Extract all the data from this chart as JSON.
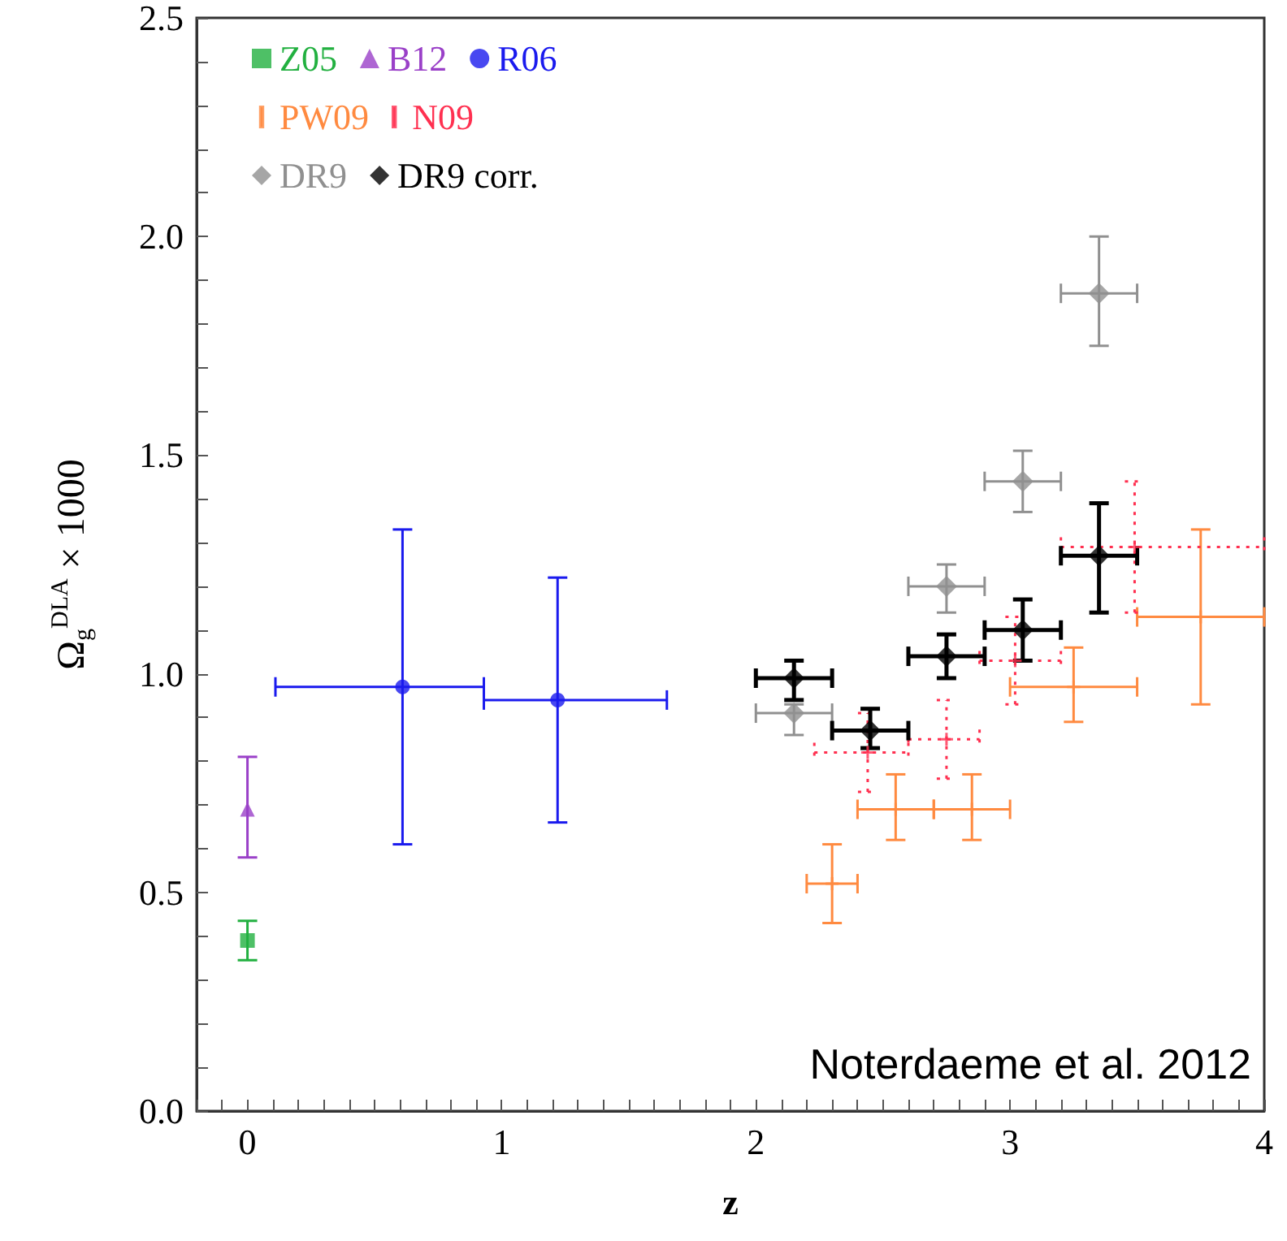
{
  "chart_data": {
    "type": "scatter",
    "xlabel": "z",
    "ylabel": "Ω$_{g}$$^{DLA}$ × 1000",
    "annotations": [
      "Noterdaeme et al. 2012"
    ],
    "xlim": [
      -0.2,
      4
    ],
    "ylim": [
      0,
      2.5
    ],
    "xticks": [
      {
        "value": -0.2,
        "label": null
      },
      {
        "value": -0.1,
        "label": null
      },
      0,
      {
        "value": 0.1,
        "label": null
      },
      {
        "value": 0.2,
        "label": null
      },
      {
        "value": 0.3,
        "label": null
      },
      {
        "value": 0.4,
        "label": null
      },
      {
        "value": 0.5,
        "label": null
      },
      {
        "value": 0.6,
        "label": null
      },
      {
        "value": 0.7,
        "label": null
      },
      {
        "value": 0.8,
        "label": null
      },
      {
        "value": 0.9,
        "label": null
      },
      1,
      {
        "value": 1.1,
        "label": null
      },
      {
        "value": 1.2,
        "label": null
      },
      {
        "value": 1.3,
        "label": null
      },
      {
        "value": 1.4,
        "label": null
      },
      {
        "value": 1.5,
        "label": null
      },
      {
        "value": 1.6,
        "label": null
      },
      {
        "value": 1.7,
        "label": null
      },
      {
        "value": 1.8,
        "label": null
      },
      {
        "value": 1.9,
        "label": null
      },
      2,
      {
        "value": 2.1,
        "label": null
      },
      {
        "value": 2.2,
        "label": null
      },
      {
        "value": 2.3,
        "label": null
      },
      {
        "value": 2.4,
        "label": null
      },
      {
        "value": 2.5,
        "label": null
      },
      {
        "value": 2.6,
        "label": null
      },
      {
        "value": 2.7,
        "label": null
      },
      {
        "value": 2.8,
        "label": null
      },
      {
        "value": 2.9,
        "label": null
      },
      3,
      {
        "value": 3.1,
        "label": null
      },
      {
        "value": 3.2,
        "label": null
      },
      {
        "value": 3.3,
        "label": null
      },
      {
        "value": 3.4,
        "label": null
      },
      {
        "value": 3.5,
        "label": null
      },
      {
        "value": 3.6,
        "label": null
      },
      {
        "value": 3.7,
        "label": null
      },
      {
        "value": 3.8,
        "label": null
      },
      {
        "value": 3.9,
        "label": null
      },
      4
    ],
    "yticks": [
      {
        "value": 0,
        "label": "0.0"
      },
      {
        "value": 0.1,
        "label": null
      },
      {
        "value": 0.2,
        "label": null
      },
      {
        "value": 0.3,
        "label": null
      },
      {
        "value": 0.4,
        "label": null
      },
      0.5,
      {
        "value": 0.6,
        "label": null
      },
      {
        "value": 0.7,
        "label": null
      },
      {
        "value": 0.8,
        "label": null
      },
      {
        "value": 0.9,
        "label": null
      },
      {
        "value": 1,
        "label": "1.0"
      },
      {
        "value": 1.1,
        "label": null
      },
      {
        "value": 1.2,
        "label": null
      },
      {
        "value": 1.3,
        "label": null
      },
      {
        "value": 1.4,
        "label": null
      },
      1.5,
      {
        "value": 1.6,
        "label": null
      },
      {
        "value": 1.7,
        "label": null
      },
      {
        "value": 1.8,
        "label": null
      },
      {
        "value": 1.9,
        "label": null
      },
      {
        "value": 2,
        "label": "2.0"
      },
      {
        "value": 2.1,
        "label": null
      },
      {
        "value": 2.2,
        "label": null
      },
      {
        "value": 2.3,
        "label": null
      },
      {
        "value": 2.4,
        "label": null
      },
      2.5
    ],
    "grid": false,
    "legend": "top left",
    "series": [
      {
        "name": "Z05",
        "color": "#22b040",
        "marker": "square",
        "x": [
          0
        ],
        "values": [
          0.39
        ],
        "errors": [
          [
            0.345,
            0.435
          ]
        ]
      },
      {
        "name": "B12",
        "color": "#9a40c8",
        "marker": "triangle",
        "x": [
          0
        ],
        "values": [
          0.69
        ],
        "errors": [
          [
            0.58,
            0.81
          ]
        ]
      },
      {
        "name": "R06",
        "color": "#1a1aee",
        "marker": "circle",
        "x": [
          0.61,
          1.22
        ],
        "values": [
          0.97,
          0.94
        ],
        "errors": [
          [
            0.61,
            1.33
          ],
          [
            0.66,
            1.22
          ]
        ],
        "xerrors": [
          [
            0.11,
            0.93
          ],
          [
            0.93,
            1.65
          ]
        ]
      },
      {
        "name": "PW09",
        "color": "#ff8a40",
        "marker": "cross",
        "x": [
          2.3,
          2.55,
          2.85,
          3.25,
          3.75
        ],
        "values": [
          0.52,
          0.69,
          0.69,
          0.97,
          1.13
        ],
        "errors": [
          [
            0.43,
            0.61
          ],
          [
            0.62,
            0.77
          ],
          [
            0.62,
            0.77
          ],
          [
            0.89,
            1.06
          ],
          [
            0.93,
            1.33
          ]
        ],
        "xerrors": [
          [
            2.2,
            2.4
          ],
          [
            2.4,
            2.7
          ],
          [
            2.7,
            3.0
          ],
          [
            3.0,
            3.5
          ],
          [
            3.5,
            4.0
          ]
        ]
      },
      {
        "name": "N09",
        "color": "#ff3050",
        "marker": "cross",
        "line_style": "dotted",
        "x": [
          2.44,
          2.75,
          3.02,
          3.49
        ],
        "values": [
          0.82,
          0.85,
          1.03,
          1.29
        ],
        "errors": [
          [
            0.73,
            0.91
          ],
          [
            0.76,
            0.94
          ],
          [
            0.93,
            1.13
          ],
          [
            1.14,
            1.44
          ]
        ],
        "xerrors": [
          [
            2.23,
            2.6
          ],
          [
            2.6,
            2.88
          ],
          [
            2.88,
            3.2
          ],
          [
            3.2,
            4.0
          ]
        ]
      },
      {
        "name": "DR9",
        "color": "#909090",
        "marker": "diamond",
        "x": [
          2.15,
          2.45,
          2.75,
          3.05,
          3.35
        ],
        "values": [
          0.91,
          null,
          1.2,
          1.44,
          1.87
        ],
        "errors": [
          [
            0.86,
            0.93
          ],
          null,
          [
            1.14,
            1.25
          ],
          [
            1.37,
            1.51
          ],
          [
            1.75,
            2.0
          ]
        ],
        "xerrors": [
          [
            2.0,
            2.3
          ],
          null,
          [
            2.6,
            2.9
          ],
          [
            2.9,
            3.2
          ],
          [
            3.2,
            3.5
          ]
        ]
      },
      {
        "name": "DR9 corr.",
        "color": "#000000",
        "marker": "diamond",
        "x": [
          2.15,
          2.45,
          2.75,
          3.05,
          3.35
        ],
        "values": [
          0.99,
          0.87,
          1.04,
          1.1,
          1.27
        ],
        "errors": [
          [
            0.94,
            1.03
          ],
          [
            0.83,
            0.92
          ],
          [
            0.99,
            1.09
          ],
          [
            1.03,
            1.17
          ],
          [
            1.14,
            1.39
          ]
        ],
        "xerrors": [
          [
            2.0,
            2.3
          ],
          [
            2.3,
            2.6
          ],
          [
            2.6,
            2.9
          ],
          [
            2.9,
            3.2
          ],
          [
            3.2,
            3.5
          ]
        ]
      }
    ]
  }
}
